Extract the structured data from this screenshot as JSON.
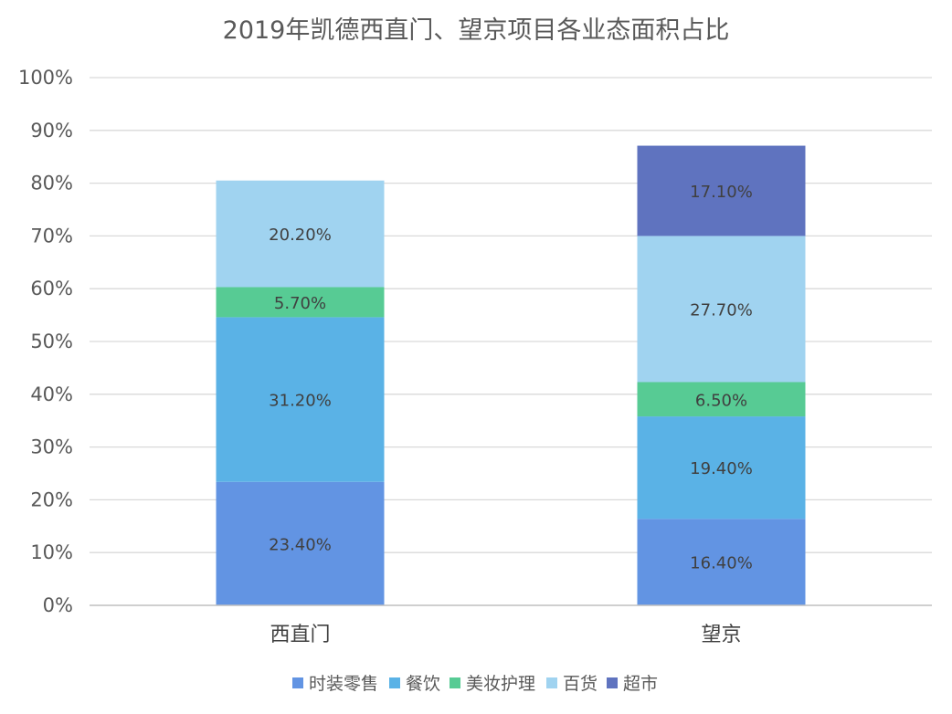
{
  "chart_data": {
    "type": "bar",
    "stacked": true,
    "title": "2019年凯德西直门、望京项目各业态面积占比",
    "categories": [
      "西直门",
      "望京"
    ],
    "series": [
      {
        "name": "时装零售",
        "values": [
          23.4,
          16.4
        ],
        "labels": [
          "23.40%",
          "16.40%"
        ],
        "color": "#6294e3"
      },
      {
        "name": "餐饮",
        "values": [
          31.2,
          19.4
        ],
        "labels": [
          "31.20%",
          "19.40%"
        ],
        "color": "#5ab2e6"
      },
      {
        "name": "美妆护理",
        "values": [
          5.7,
          6.5
        ],
        "labels": [
          "5.70%",
          "6.50%"
        ],
        "color": "#57cb94"
      },
      {
        "name": "百货",
        "values": [
          20.2,
          27.7
        ],
        "labels": [
          "20.20%",
          "27.70%"
        ],
        "color": "#a0d3f0"
      },
      {
        "name": "超市",
        "values": [
          0,
          17.1
        ],
        "labels": [
          "",
          "17.10%"
        ],
        "color": "#5f73bf"
      }
    ],
    "ylim": [
      0,
      100
    ],
    "yticks": [
      "0%",
      "10%",
      "20%",
      "30%",
      "40%",
      "50%",
      "60%",
      "70%",
      "80%",
      "90%",
      "100%"
    ],
    "grid": true,
    "legend": "bottom"
  }
}
